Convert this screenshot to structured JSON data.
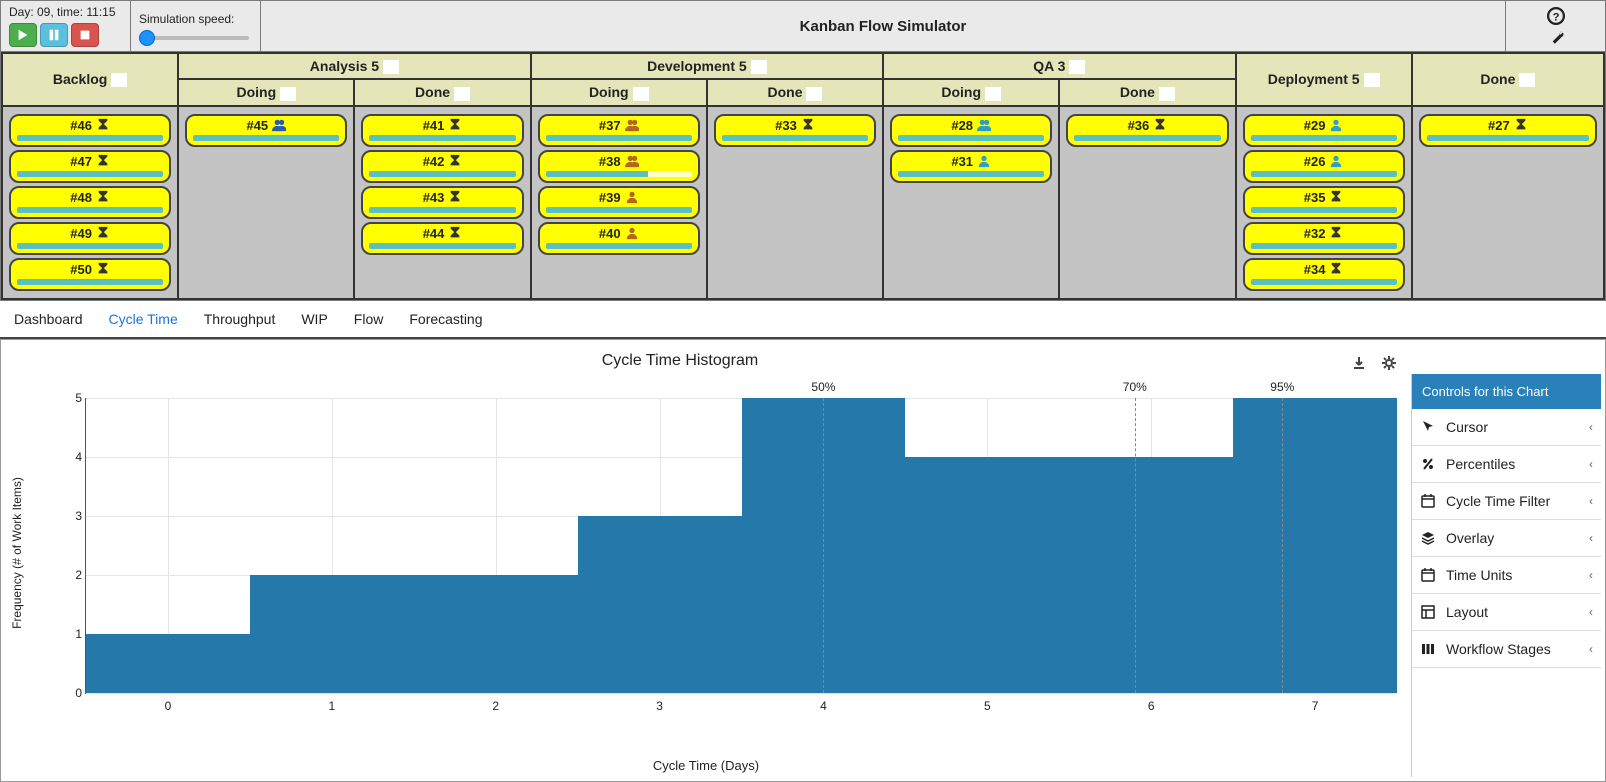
{
  "topbar": {
    "daytime_label": "Day: 09, time: 11:15",
    "speed_label": "Simulation speed:",
    "title": "Kanban Flow Simulator"
  },
  "board": {
    "columns": [
      {
        "name": "Backlog",
        "wip": null,
        "sub": null
      },
      {
        "name": "Analysis",
        "wip": "5",
        "sub": [
          "Doing",
          "Done"
        ]
      },
      {
        "name": "Development",
        "wip": "5",
        "sub": [
          "Doing",
          "Done"
        ]
      },
      {
        "name": "QA",
        "wip": "3",
        "sub": [
          "Doing",
          "Done"
        ]
      },
      {
        "name": "Deployment",
        "wip": "5",
        "sub": null
      },
      {
        "name": "Done",
        "wip": null,
        "sub": null
      }
    ],
    "cards": {
      "backlog": [
        {
          "id": "#46",
          "icon": "hourglass"
        },
        {
          "id": "#47",
          "icon": "hourglass"
        },
        {
          "id": "#48",
          "icon": "hourglass"
        },
        {
          "id": "#49",
          "icon": "hourglass"
        },
        {
          "id": "#50",
          "icon": "hourglass"
        }
      ],
      "analysis_doing": [
        {
          "id": "#45",
          "icon": "people2",
          "icon_color": "#2a5db0"
        }
      ],
      "analysis_done": [
        {
          "id": "#41",
          "icon": "hourglass"
        },
        {
          "id": "#42",
          "icon": "hourglass"
        },
        {
          "id": "#43",
          "icon": "hourglass"
        },
        {
          "id": "#44",
          "icon": "hourglass"
        }
      ],
      "dev_doing": [
        {
          "id": "#37",
          "icon": "people2",
          "icon_color": "#b5651d"
        },
        {
          "id": "#38",
          "icon": "people2",
          "icon_color": "#b5651d",
          "partial": true
        },
        {
          "id": "#39",
          "icon": "person",
          "icon_color": "#b5651d"
        },
        {
          "id": "#40",
          "icon": "person",
          "icon_color": "#b5651d"
        }
      ],
      "dev_done": [
        {
          "id": "#33",
          "icon": "hourglass"
        }
      ],
      "qa_doing": [
        {
          "id": "#28",
          "icon": "people2",
          "icon_color": "#2aa0c8"
        },
        {
          "id": "#31",
          "icon": "person",
          "icon_color": "#2aa0c8"
        }
      ],
      "qa_done": [
        {
          "id": "#36",
          "icon": "hourglass"
        }
      ],
      "deployment": [
        {
          "id": "#29",
          "icon": "person",
          "icon_color": "#2aa0c8"
        },
        {
          "id": "#26",
          "icon": "person",
          "icon_color": "#2aa0c8"
        },
        {
          "id": "#35",
          "icon": "hourglass"
        },
        {
          "id": "#32",
          "icon": "hourglass"
        },
        {
          "id": "#34",
          "icon": "hourglass"
        }
      ],
      "done": [
        {
          "id": "#27",
          "icon": "hourglass"
        }
      ]
    }
  },
  "tabs": [
    "Dashboard",
    "Cycle Time",
    "Throughput",
    "WIP",
    "Flow",
    "Forecasting"
  ],
  "active_tab": 1,
  "chart": {
    "title": "Cycle Time Histogram",
    "type": "histogram",
    "x_label": "Cycle Time (Days)",
    "y_label": "Frequency (# of Work Items)",
    "x_categories": [
      0,
      1,
      2,
      3,
      4,
      5,
      6,
      7
    ],
    "values": [
      1,
      2,
      2,
      3,
      5,
      4,
      4,
      5
    ],
    "bar_color": "#2579aa",
    "ylim": [
      0,
      5
    ],
    "ytick_step": 1,
    "grid_color": "#e6e6e6",
    "percentiles": [
      {
        "label": "50%",
        "x": 4.5
      },
      {
        "label": "70%",
        "x": 6.4
      },
      {
        "label": "95%",
        "x": 7.3
      }
    ]
  },
  "controls": {
    "header": "Controls for this Chart",
    "items": [
      {
        "icon": "cursor",
        "label": "Cursor"
      },
      {
        "icon": "percent",
        "label": "Percentiles"
      },
      {
        "icon": "calendar",
        "label": "Cycle Time Filter"
      },
      {
        "icon": "layers",
        "label": "Overlay"
      },
      {
        "icon": "calendar",
        "label": "Time Units"
      },
      {
        "icon": "layout",
        "label": "Layout"
      },
      {
        "icon": "columns",
        "label": "Workflow Stages"
      }
    ]
  }
}
